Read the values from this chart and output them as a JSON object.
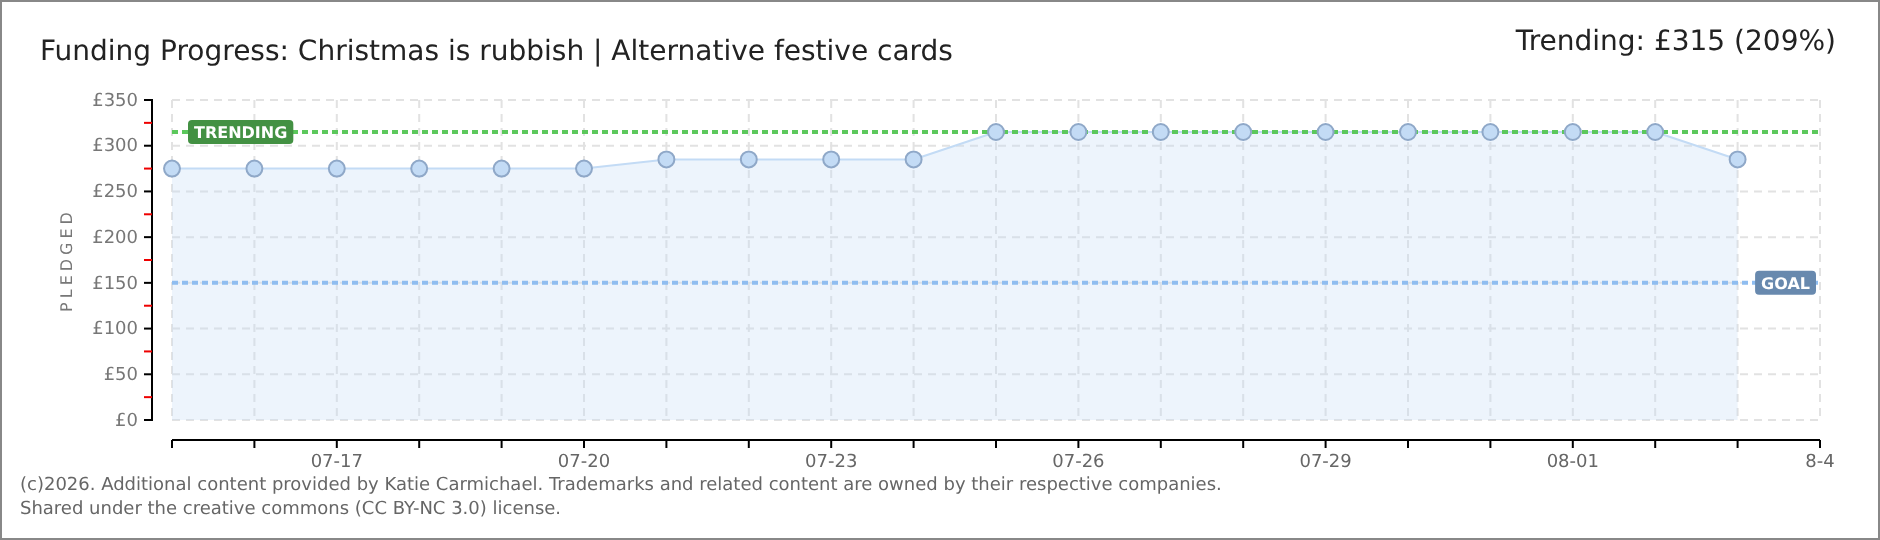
{
  "chart_data": {
    "type": "area",
    "title": "Funding Progress: Christmas is rubbish | Alternative festive cards",
    "ylabel": "PLEDGED",
    "annotations": [
      "Trending:  £315 (209%)",
      "(c)2026. Additional content provided by Katie Carmichael. Trademarks and related content are owned by their respective companies.",
      "Shared under the creative commons (CC BY-NC 3.0) license."
    ],
    "x": [
      "--07-15",
      "--07-16",
      "--07-17",
      "--07-18",
      "--07-19",
      "--07-20",
      "--07-21",
      "--07-22",
      "--07-23",
      "--07-24",
      "--07-25",
      "--07-26",
      "--07-27",
      "--07-28",
      "--07-29",
      "--07-30",
      "--07-31",
      "--08-01",
      "--08-02",
      "--08-03"
    ],
    "series": [
      {
        "color": "#c3dbf5",
        "values": [
          275,
          275,
          275,
          275,
          275,
          275,
          285,
          285,
          285,
          285,
          315,
          315,
          315,
          315,
          315,
          315,
          315,
          315,
          315,
          285
        ]
      }
    ],
    "xlim": [
      "--07-15",
      "--08-04"
    ],
    "xticks": [
      {
        "value": "--07-15",
        "label": null
      },
      {
        "value": "--07-16",
        "label": null
      },
      {
        "value": "--07-17",
        "label": "07-17"
      },
      {
        "value": "--07-18",
        "label": null
      },
      {
        "value": "--07-19",
        "label": null
      },
      {
        "value": "--07-20",
        "label": "07-20"
      },
      {
        "value": "--07-21",
        "label": null
      },
      {
        "value": "--07-22",
        "label": null
      },
      {
        "value": "--07-23",
        "label": "07-23"
      },
      {
        "value": "--07-24",
        "label": null
      },
      {
        "value": "--07-25",
        "label": null
      },
      {
        "value": "--07-26",
        "label": "07-26"
      },
      {
        "value": "--07-27",
        "label": null
      },
      {
        "value": "--07-28",
        "label": null
      },
      {
        "value": "--07-29",
        "label": "07-29"
      },
      {
        "value": "--07-30",
        "label": null
      },
      {
        "value": "--07-31",
        "label": null
      },
      {
        "value": "--08-01",
        "label": "08-01"
      },
      {
        "value": "--08-02",
        "label": null
      },
      {
        "value": "--08-03",
        "label": null
      },
      {
        "value": "--08-04",
        "label": "8-4"
      }
    ],
    "ylim": [
      0,
      350
    ],
    "yticks": [
      {
        "value": 0,
        "label": "£0"
      },
      {
        "value": 25,
        "label": null
      },
      {
        "value": 50,
        "label": "£50"
      },
      {
        "value": 75,
        "label": null
      },
      {
        "value": 100,
        "label": "£100"
      },
      {
        "value": 125,
        "label": null
      },
      {
        "value": 150,
        "label": "£150"
      },
      {
        "value": 175,
        "label": null
      },
      {
        "value": 200,
        "label": "£200"
      },
      {
        "value": 225,
        "label": null
      },
      {
        "value": 250,
        "label": "£250"
      },
      {
        "value": 275,
        "label": null
      },
      {
        "value": 300,
        "label": "£300"
      },
      {
        "value": 325,
        "label": null
      },
      {
        "value": 350,
        "label": "£350"
      }
    ],
    "ref_lines": [
      {
        "axis": "y",
        "value": 315,
        "label": "TRENDING",
        "color": "#5cc85c",
        "line_style": "dotted"
      },
      {
        "axis": "y",
        "value": 150,
        "label": "GOAL",
        "color": "#8fbdf0",
        "line_style": "dotted"
      }
    ],
    "grid": true,
    "marker": "circle"
  }
}
